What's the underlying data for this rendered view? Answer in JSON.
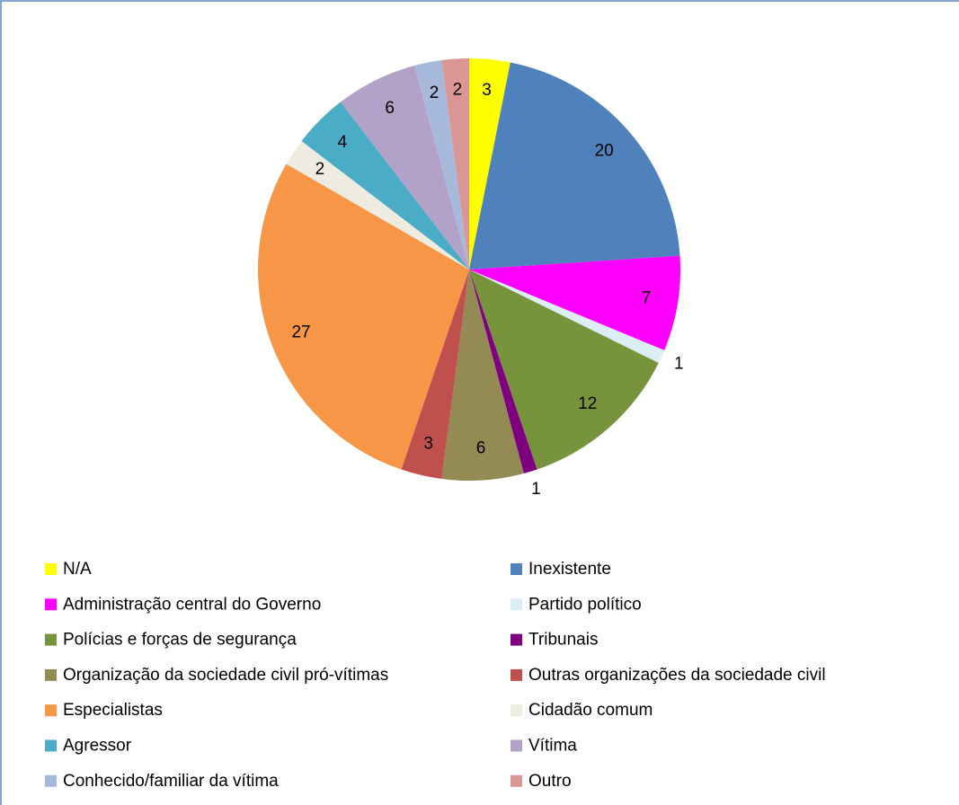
{
  "chart_data": {
    "type": "pie",
    "categories": [
      "N/A",
      "Inexistente",
      "Administração central do Governo",
      "Partido político",
      "Polícias e forças de segurança",
      "Tribunais",
      "Organização da sociedade civil pró-vítimas",
      "Outras organizações da sociedade civil",
      "Especialistas",
      "Cidadão comum",
      "Agressor",
      "Vítima",
      "Conhecido/familiar da vítima",
      "Outro"
    ],
    "values": [
      3,
      20,
      7,
      1,
      12,
      1,
      6,
      3,
      27,
      2,
      4,
      6,
      2,
      2
    ],
    "colors": [
      "#ffff00",
      "#4f81bd",
      "#ff00ff",
      "#daeef3",
      "#77933c",
      "#7f007f",
      "#948a54",
      "#c0504d",
      "#f79646",
      "#eeece1",
      "#4bacc6",
      "#b2a2c7",
      "#a6b9da",
      "#d99694"
    ],
    "legend": "bottom"
  }
}
